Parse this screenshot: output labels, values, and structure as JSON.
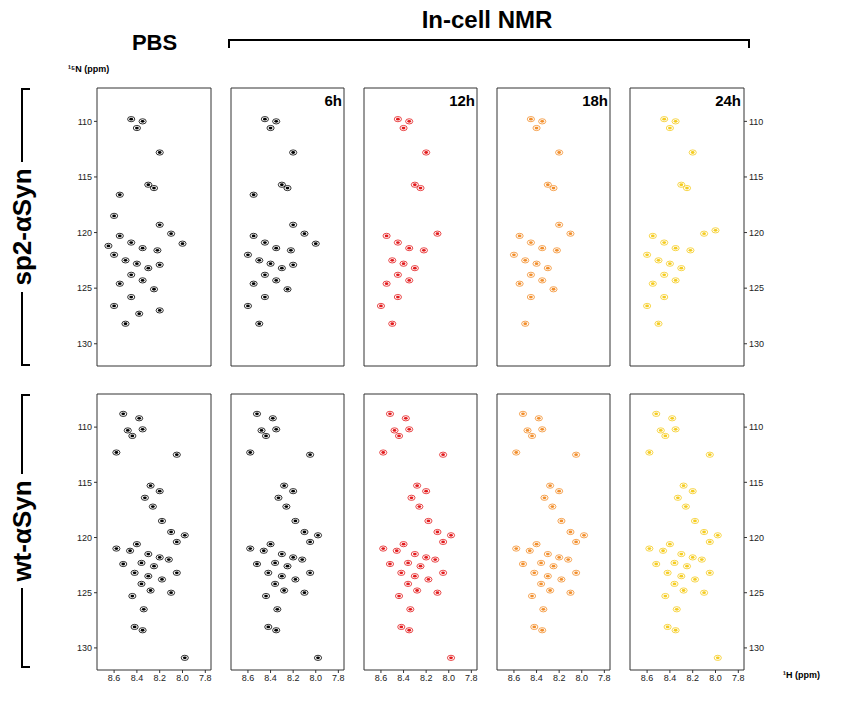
{
  "chart_data": [
    {
      "type": "scatter",
      "title": "PBS",
      "row_label": "sp2-αSyn",
      "y_label": "¹⁵N (ppm)",
      "color": "#000000",
      "xlim": [
        8.75,
        7.75
      ],
      "xticks": [
        8.6,
        8.4,
        8.2,
        8.0,
        7.8
      ],
      "ylim": [
        107,
        132
      ],
      "yticks": [
        110,
        115,
        120,
        125,
        130
      ],
      "tick_labels": "y",
      "x": [
        8.45,
        8.35,
        8.4,
        8.2,
        8.55,
        8.3,
        8.25,
        8.6,
        8.2,
        8.1,
        8.55,
        8.45,
        8.35,
        8.22,
        8.6,
        8.5,
        8.4,
        8.3,
        8.2,
        8.45,
        8.35,
        8.55,
        8.25,
        8.45,
        8.6,
        8.38,
        8.5,
        8.2,
        8.65,
        8.0
      ],
      "y": [
        109.8,
        110.0,
        110.6,
        112.8,
        116.6,
        115.7,
        116.0,
        118.5,
        119.3,
        120.1,
        120.3,
        120.9,
        121.4,
        121.6,
        122.0,
        122.5,
        122.8,
        123.2,
        122.9,
        123.8,
        124.3,
        124.6,
        125.1,
        125.8,
        126.6,
        127.3,
        128.2,
        127.0,
        121.2,
        121.0
      ]
    },
    {
      "type": "scatter",
      "title": "6h",
      "annotations": [
        "In-cell NMR"
      ],
      "color": "#000000",
      "xlim": [
        8.75,
        7.75
      ],
      "xticks": [
        8.6,
        8.4,
        8.2,
        8.0,
        7.8
      ],
      "ylim": [
        107,
        132
      ],
      "yticks": [
        110,
        115,
        120,
        125,
        130
      ],
      "tick_labels": false,
      "x": [
        8.45,
        8.35,
        8.4,
        8.2,
        8.55,
        8.3,
        8.25,
        8.2,
        8.1,
        8.55,
        8.45,
        8.35,
        8.22,
        8.6,
        8.5,
        8.4,
        8.3,
        8.2,
        8.45,
        8.35,
        8.55,
        8.25,
        8.45,
        8.6,
        8.5,
        8.0
      ],
      "y": [
        109.8,
        110.0,
        110.6,
        112.8,
        116.6,
        115.7,
        116.0,
        119.3,
        120.1,
        120.3,
        120.9,
        121.4,
        121.6,
        122.0,
        122.5,
        122.8,
        123.2,
        122.9,
        123.8,
        124.3,
        124.6,
        125.1,
        125.8,
        126.6,
        128.2,
        121.0
      ]
    },
    {
      "type": "scatter",
      "title": "12h",
      "color": "#e31a1c",
      "xlim": [
        8.75,
        7.75
      ],
      "xticks": [
        8.6,
        8.4,
        8.2,
        8.0,
        7.8
      ],
      "ylim": [
        107,
        132
      ],
      "yticks": [
        110,
        115,
        120,
        125,
        130
      ],
      "tick_labels": false,
      "x": [
        8.45,
        8.35,
        8.4,
        8.2,
        8.3,
        8.25,
        8.1,
        8.55,
        8.45,
        8.35,
        8.22,
        8.5,
        8.4,
        8.3,
        8.45,
        8.35,
        8.55,
        8.45,
        8.6,
        8.5
      ],
      "y": [
        109.8,
        110.0,
        110.6,
        112.8,
        115.7,
        116.0,
        120.1,
        120.3,
        120.9,
        121.4,
        121.6,
        122.5,
        122.8,
        123.2,
        123.8,
        124.3,
        124.6,
        125.8,
        126.6,
        128.2
      ]
    },
    {
      "type": "scatter",
      "title": "18h",
      "color": "#f28e2b",
      "xlim": [
        8.75,
        7.75
      ],
      "xticks": [
        8.6,
        8.4,
        8.2,
        8.0,
        7.8
      ],
      "ylim": [
        107,
        132
      ],
      "yticks": [
        110,
        115,
        120,
        125,
        130
      ],
      "tick_labels": false,
      "x": [
        8.45,
        8.35,
        8.4,
        8.2,
        8.3,
        8.25,
        8.2,
        8.1,
        8.55,
        8.45,
        8.35,
        8.22,
        8.6,
        8.5,
        8.4,
        8.3,
        8.45,
        8.35,
        8.55,
        8.25,
        8.45,
        8.5
      ],
      "y": [
        109.8,
        110.0,
        110.6,
        112.8,
        115.7,
        116.0,
        119.3,
        120.1,
        120.3,
        120.9,
        121.4,
        121.6,
        122.0,
        122.5,
        122.8,
        123.2,
        123.8,
        124.3,
        124.6,
        125.1,
        125.8,
        128.2
      ]
    },
    {
      "type": "scatter",
      "title": "24h",
      "color": "#f5cc1f",
      "xlim": [
        8.75,
        7.75
      ],
      "xticks": [
        8.6,
        8.4,
        8.2,
        8.0,
        7.8
      ],
      "ylim": [
        107,
        132
      ],
      "yticks": [
        110,
        115,
        120,
        125,
        130
      ],
      "tick_labels": "y",
      "x": [
        8.45,
        8.35,
        8.4,
        8.2,
        8.3,
        8.25,
        8.1,
        8.0,
        8.55,
        8.45,
        8.35,
        8.22,
        8.6,
        8.5,
        8.4,
        8.3,
        8.45,
        8.35,
        8.55,
        8.45,
        8.6,
        8.5
      ],
      "y": [
        109.8,
        110.0,
        110.6,
        112.8,
        115.7,
        116.0,
        120.1,
        119.8,
        120.3,
        120.9,
        121.4,
        121.6,
        122.0,
        122.5,
        122.8,
        123.2,
        123.8,
        124.3,
        124.6,
        125.8,
        126.6,
        128.2
      ]
    },
    {
      "type": "scatter",
      "row_label": "wt-αSyn",
      "color": "#000000",
      "xlim": [
        8.75,
        7.75
      ],
      "xticks": [
        8.6,
        8.4,
        8.2,
        8.0,
        7.8
      ],
      "ylim": [
        107,
        132
      ],
      "yticks": [
        110,
        115,
        120,
        125,
        130
      ],
      "tick_labels": true,
      "x": [
        8.52,
        8.38,
        8.48,
        8.44,
        8.35,
        8.58,
        8.05,
        8.28,
        8.2,
        8.33,
        8.26,
        8.18,
        8.1,
        7.98,
        8.05,
        8.4,
        8.46,
        8.3,
        8.2,
        8.12,
        8.36,
        8.25,
        8.52,
        8.42,
        8.3,
        8.18,
        8.05,
        8.36,
        8.28,
        8.44,
        8.34,
        8.42,
        8.35,
        7.98,
        8.58,
        8.1
      ],
      "y": [
        108.8,
        109.2,
        110.3,
        110.8,
        110.2,
        112.3,
        112.5,
        115.3,
        115.8,
        116.4,
        117.2,
        118.5,
        119.5,
        119.8,
        120.4,
        120.6,
        121.2,
        121.5,
        121.8,
        122.0,
        122.3,
        122.6,
        122.4,
        123.2,
        123.5,
        123.8,
        123.2,
        124.2,
        124.8,
        125.3,
        126.5,
        128.1,
        128.4,
        130.9,
        121.0,
        125.0
      ]
    },
    {
      "type": "scatter",
      "color": "#000000",
      "xlim": [
        8.75,
        7.75
      ],
      "xticks": [
        8.6,
        8.4,
        8.2,
        8.0,
        7.8
      ],
      "ylim": [
        107,
        132
      ],
      "yticks": [
        110,
        115,
        120,
        125,
        130
      ],
      "tick_labels": "x",
      "x": [
        8.52,
        8.38,
        8.48,
        8.44,
        8.35,
        8.58,
        8.05,
        8.28,
        8.2,
        8.33,
        8.26,
        8.18,
        8.1,
        7.98,
        8.05,
        8.4,
        8.46,
        8.3,
        8.2,
        8.12,
        8.36,
        8.25,
        8.52,
        8.42,
        8.3,
        8.18,
        8.05,
        8.36,
        8.28,
        8.44,
        8.34,
        8.42,
        8.35,
        7.98,
        8.58,
        8.1
      ],
      "y": [
        108.8,
        109.2,
        110.3,
        110.8,
        110.2,
        112.3,
        112.5,
        115.3,
        115.8,
        116.4,
        117.2,
        118.5,
        119.5,
        119.8,
        120.4,
        120.6,
        121.2,
        121.5,
        121.8,
        122.0,
        122.3,
        122.6,
        122.4,
        123.2,
        123.5,
        123.8,
        123.2,
        124.2,
        124.8,
        125.3,
        126.5,
        128.1,
        128.4,
        130.9,
        121.0,
        125.0
      ]
    },
    {
      "type": "scatter",
      "color": "#e31a1c",
      "xlim": [
        8.75,
        7.75
      ],
      "xticks": [
        8.6,
        8.4,
        8.2,
        8.0,
        7.8
      ],
      "ylim": [
        107,
        132
      ],
      "yticks": [
        110,
        115,
        120,
        125,
        130
      ],
      "tick_labels": "x",
      "x": [
        8.52,
        8.38,
        8.48,
        8.44,
        8.35,
        8.58,
        8.05,
        8.28,
        8.2,
        8.33,
        8.26,
        8.18,
        8.1,
        7.98,
        8.05,
        8.4,
        8.46,
        8.3,
        8.2,
        8.12,
        8.36,
        8.25,
        8.52,
        8.42,
        8.3,
        8.18,
        8.05,
        8.36,
        8.28,
        8.44,
        8.34,
        8.42,
        8.35,
        7.98,
        8.58,
        8.1
      ],
      "y": [
        108.8,
        109.2,
        110.3,
        110.8,
        110.2,
        112.3,
        112.5,
        115.3,
        115.8,
        116.4,
        117.2,
        118.5,
        119.5,
        119.8,
        120.4,
        120.6,
        121.2,
        121.5,
        121.8,
        122.0,
        122.3,
        122.6,
        122.4,
        123.2,
        123.5,
        123.8,
        123.2,
        124.2,
        124.8,
        125.3,
        126.5,
        128.1,
        128.4,
        130.9,
        121.0,
        125.0
      ]
    },
    {
      "type": "scatter",
      "color": "#f28e2b",
      "xlim": [
        8.75,
        7.75
      ],
      "xticks": [
        8.6,
        8.4,
        8.2,
        8.0,
        7.8
      ],
      "ylim": [
        107,
        132
      ],
      "yticks": [
        110,
        115,
        120,
        125,
        130
      ],
      "tick_labels": "x",
      "x": [
        8.52,
        8.38,
        8.48,
        8.44,
        8.35,
        8.58,
        8.05,
        8.28,
        8.2,
        8.33,
        8.26,
        8.18,
        8.1,
        7.98,
        8.05,
        8.4,
        8.46,
        8.3,
        8.2,
        8.12,
        8.36,
        8.25,
        8.52,
        8.42,
        8.3,
        8.18,
        8.05,
        8.36,
        8.28,
        8.44,
        8.34,
        8.42,
        8.35,
        8.58,
        8.1
      ],
      "y": [
        108.8,
        109.2,
        110.3,
        110.8,
        110.2,
        112.3,
        112.5,
        115.3,
        115.8,
        116.4,
        117.2,
        118.5,
        119.5,
        119.8,
        120.4,
        120.6,
        121.2,
        121.5,
        121.8,
        122.0,
        122.3,
        122.6,
        122.4,
        123.2,
        123.5,
        123.8,
        123.2,
        124.2,
        124.8,
        125.3,
        126.5,
        128.1,
        128.4,
        121.0,
        125.0
      ]
    },
    {
      "type": "scatter",
      "x_label": "¹H (ppm)",
      "color": "#f5cc1f",
      "xlim": [
        8.75,
        7.75
      ],
      "xticks": [
        8.6,
        8.4,
        8.2,
        8.0,
        7.8
      ],
      "ylim": [
        107,
        132
      ],
      "yticks": [
        110,
        115,
        120,
        125,
        130
      ],
      "tick_labels": true,
      "x": [
        8.52,
        8.38,
        8.48,
        8.44,
        8.35,
        8.58,
        8.05,
        8.28,
        8.2,
        8.33,
        8.26,
        8.18,
        8.1,
        7.98,
        8.05,
        8.4,
        8.46,
        8.3,
        8.2,
        8.12,
        8.36,
        8.25,
        8.52,
        8.42,
        8.3,
        8.18,
        8.05,
        8.36,
        8.28,
        8.44,
        8.34,
        8.42,
        8.35,
        7.98,
        8.58,
        8.1
      ],
      "y": [
        108.8,
        109.2,
        110.3,
        110.8,
        110.2,
        112.3,
        112.5,
        115.3,
        115.8,
        116.4,
        117.2,
        118.5,
        119.5,
        119.8,
        120.4,
        120.6,
        121.2,
        121.5,
        121.8,
        122.0,
        122.3,
        122.6,
        122.4,
        123.2,
        123.5,
        123.8,
        123.2,
        124.2,
        124.8,
        125.3,
        126.5,
        128.1,
        128.4,
        130.9,
        121.0,
        125.0
      ]
    }
  ]
}
